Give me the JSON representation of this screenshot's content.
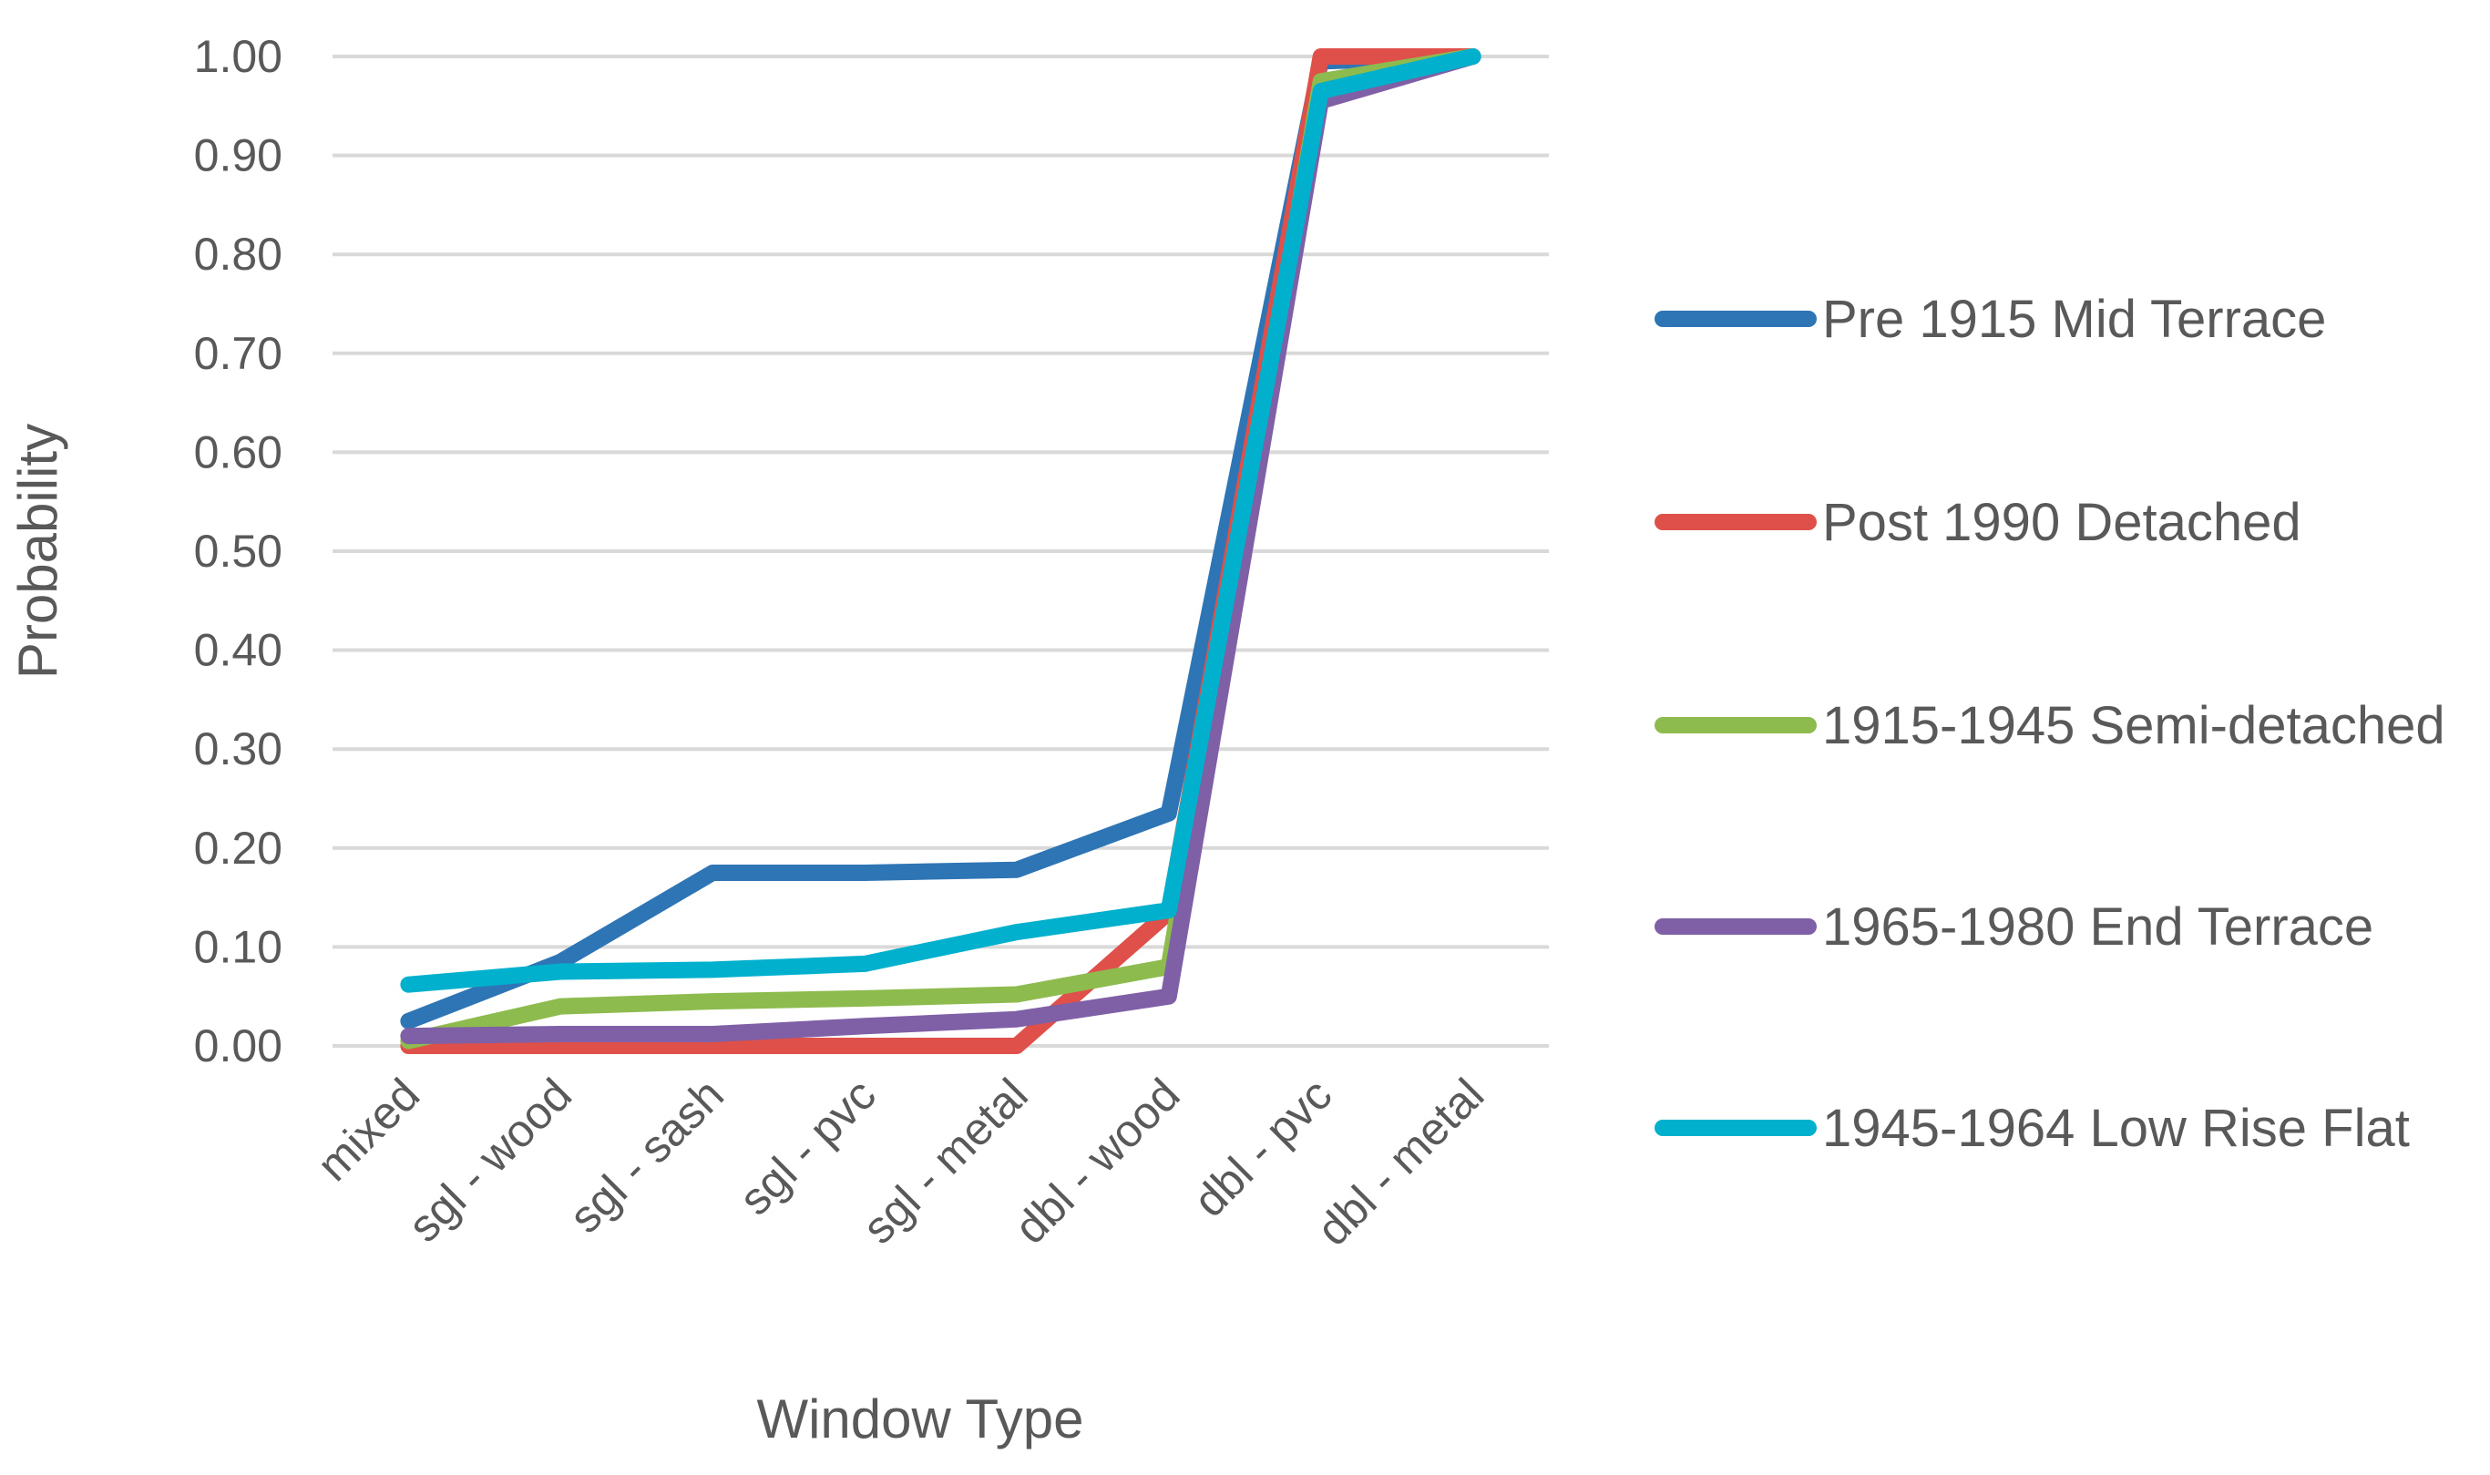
{
  "chart_data": {
    "type": "line",
    "xlabel": "Window Type",
    "ylabel": "Probability",
    "categories": [
      "mixed",
      "sgl - wood",
      "sgl - sash",
      "sgl - pvc",
      "sgl - metal",
      "dbl - wood",
      "dbl - pvc",
      "dbl - metal"
    ],
    "ylim": [
      0,
      1
    ],
    "yticks": [
      "0.00",
      "0.10",
      "0.20",
      "0.30",
      "0.40",
      "0.50",
      "0.60",
      "0.70",
      "0.80",
      "0.90",
      "1.00"
    ],
    "grid": true,
    "legend_position": "right",
    "series": [
      {
        "name": "Pre 1915 Mid Terrace",
        "color": "#2E75B6",
        "values": [
          0.025,
          0.085,
          0.175,
          0.175,
          0.178,
          0.235,
          0.995,
          1.0
        ]
      },
      {
        "name": "Post 1990 Detached",
        "color": "#E0504A",
        "values": [
          0.0,
          0.0,
          0.0,
          0.0,
          0.0,
          0.135,
          1.0,
          1.0
        ]
      },
      {
        "name": "1915-1945 Semi-detached",
        "color": "#8DBB4D",
        "values": [
          0.005,
          0.04,
          0.045,
          0.048,
          0.052,
          0.08,
          0.975,
          1.0
        ]
      },
      {
        "name": "1965-1980 End Terrace",
        "color": "#7F5FA6",
        "values": [
          0.01,
          0.012,
          0.012,
          0.02,
          0.027,
          0.05,
          0.955,
          1.0
        ]
      },
      {
        "name": "1945-1964 Low Rise Flat",
        "color": "#00B0CC",
        "values": [
          0.062,
          0.075,
          0.077,
          0.083,
          0.115,
          0.137,
          0.965,
          1.0
        ]
      }
    ]
  }
}
